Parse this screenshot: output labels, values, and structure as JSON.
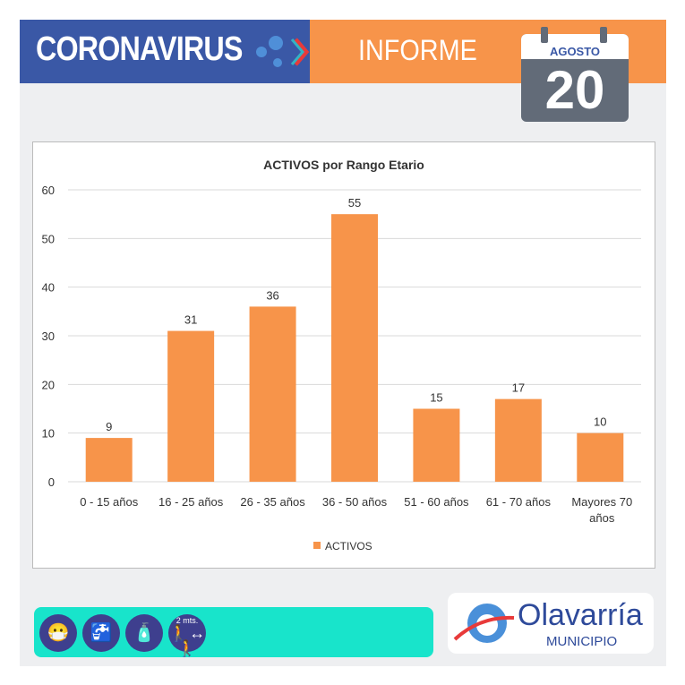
{
  "header": {
    "left_title": "CORONAVIRUS",
    "right_title": "INFORME",
    "calendar_month": "AGOSTO",
    "calendar_day": "20"
  },
  "footer": {
    "icons": [
      "mask-icon",
      "handwash-icon",
      "sanitizer-icon",
      "distance-icon"
    ],
    "distance_label": "2 mts.",
    "logo_name": "Olavarría",
    "logo_sub": "MUNICIPIO"
  },
  "colors": {
    "blue": "#3a58a6",
    "orange": "#f7944a",
    "bar": "#f7944a",
    "teal": "#18e4cb"
  },
  "chart_data": {
    "type": "bar",
    "title": "ACTIVOS por Rango Etario",
    "categories": [
      "0 - 15 años",
      "16 - 25 años",
      "26 - 35 años",
      "36 - 50 años",
      "51 - 60 años",
      "61 - 70 años",
      "Mayores 70 años"
    ],
    "series": [
      {
        "name": "ACTIVOS",
        "values": [
          9,
          31,
          36,
          55,
          15,
          17,
          10
        ]
      }
    ],
    "ylim": [
      0,
      60
    ],
    "yticks": [
      0,
      10,
      20,
      30,
      40,
      50,
      60
    ],
    "grid": true,
    "legend": "bottom",
    "data_labels": true
  }
}
